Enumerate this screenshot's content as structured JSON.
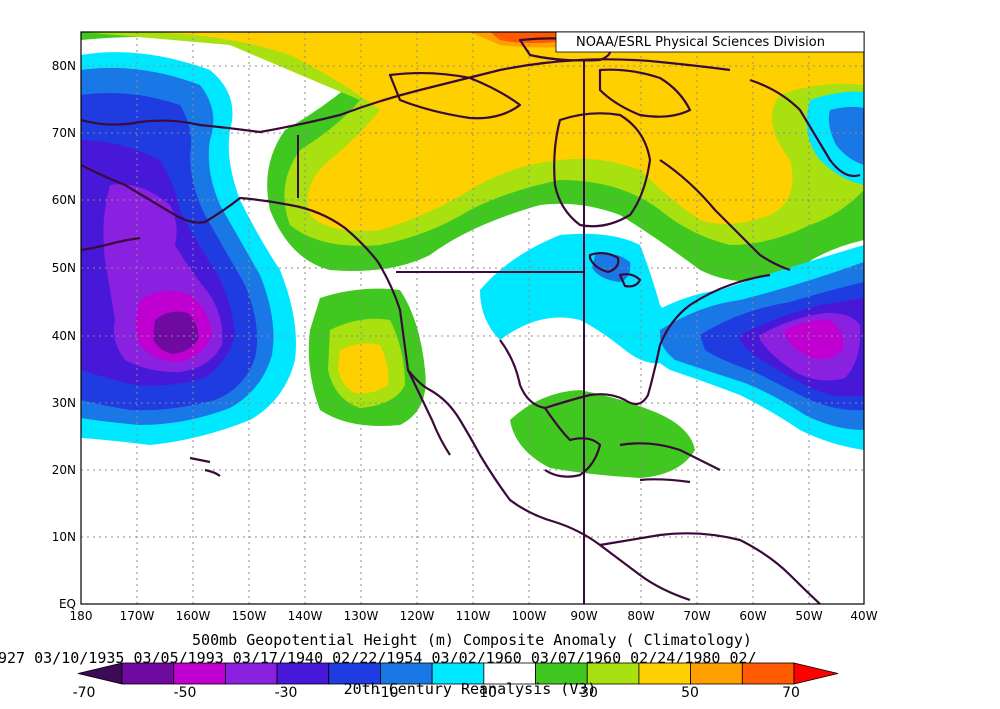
{
  "credit": "NOAA/ESRL Physical Sciences Division",
  "lat_labels": [
    "80N",
    "70N",
    "60N",
    "50N",
    "40N",
    "30N",
    "20N",
    "10N",
    "EQ"
  ],
  "lon_labels": [
    "180",
    "170W",
    "160W",
    "150W",
    "140W",
    "130W",
    "120W",
    "110W",
    "100W",
    "90W",
    "80W",
    "70W",
    "60W",
    "50W",
    "40W"
  ],
  "title": "500mb Geopotential Height (m) Composite Anomaly ( Climatology)",
  "dates": "927 03/10/1935 03/05/1993 03/17/1940 02/22/1954 03/02/1960 03/07/1960 02/24/1980 02/",
  "dataset": "20th Century Reanalysis (V3)",
  "colorbar": {
    "labels": [
      "-70",
      "-50",
      "-30",
      "-10",
      "10",
      "30",
      "50",
      "70"
    ],
    "colors": [
      "#3d0a57",
      "#6e0aa0",
      "#c000d0",
      "#8a20e0",
      "#4818d8",
      "#1f3ce0",
      "#1a78e6",
      "#00e8ff",
      "#ffffff",
      "#40c820",
      "#a8e010",
      "#ffd000",
      "#ffa000",
      "#ff5a00",
      "#ff0000"
    ]
  },
  "map_colors": {
    "neg10": "#00e8ff",
    "neg20": "#1a78e6",
    "neg30": "#1f3ce0",
    "neg40": "#4818d8",
    "neg50": "#8a20e0",
    "neg60": "#c000d0",
    "neg70": "#6e0aa0",
    "pos10": "#40c820",
    "pos20": "#a8e010",
    "pos30": "#ffd000",
    "pos40": "#ffa000",
    "pos50": "#ff5a00",
    "coast": "#3a0a3a"
  }
}
